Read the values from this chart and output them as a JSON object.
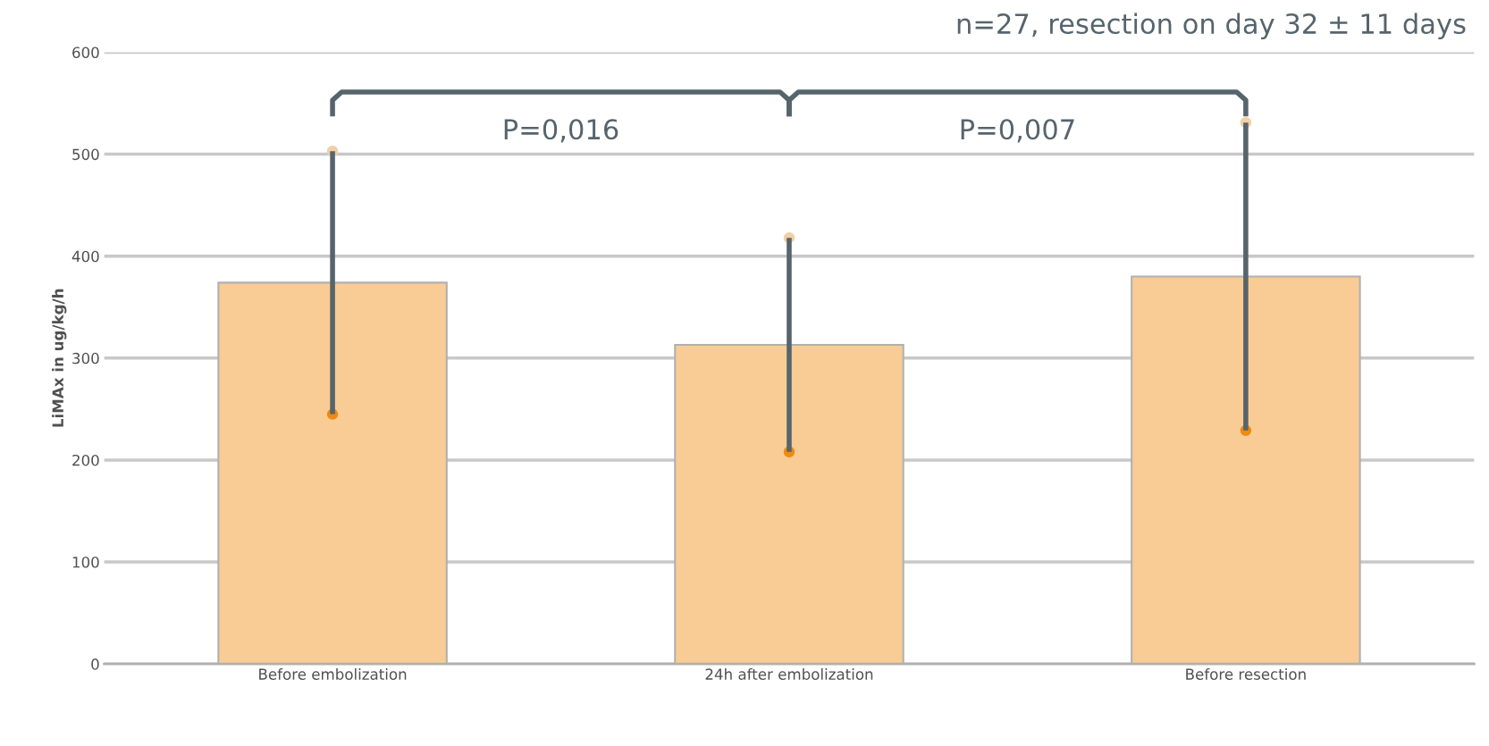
{
  "chart_data": {
    "type": "bar",
    "ylabel": "LiMAx in ug/kg/h",
    "categories": [
      "Before embolization",
      "24h after embolization",
      "Before resection"
    ],
    "values": [
      374,
      313,
      380
    ],
    "color": "#f8cc94",
    "errors": [
      129,
      105,
      151
    ],
    "ylim": [
      0,
      600
    ],
    "yticks": [
      0,
      100,
      200,
      300,
      400,
      500,
      600
    ],
    "grid": "y",
    "annotations": [
      "P=0,016",
      "P=0,007",
      "n=27, resection on day 32 ± 11 days"
    ]
  }
}
